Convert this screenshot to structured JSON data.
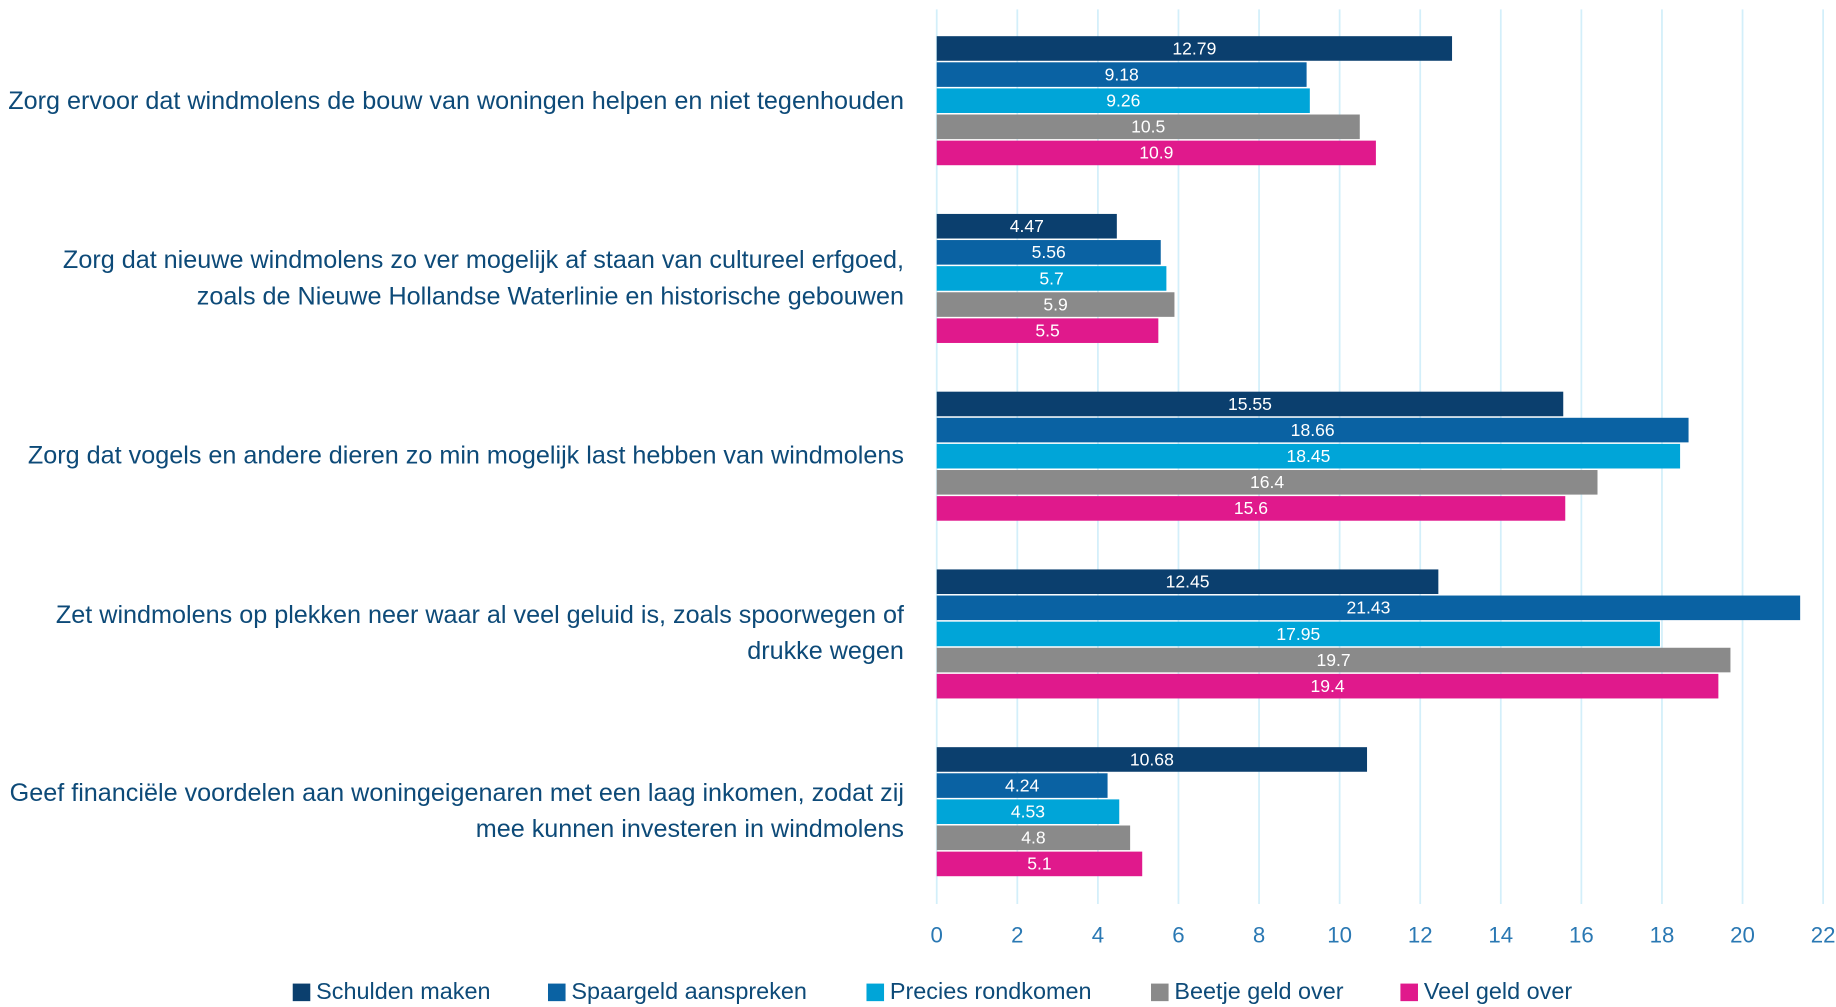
{
  "chart_data": {
    "type": "hbar",
    "categories": [
      "Zorg ervoor dat windmolens de bouw van woningen helpen en niet tegenhouden",
      "Zorg dat nieuwe windmolens zo ver mogelijk af staan van cultureel erfgoed, zoals de Nieuwe Hollandse Waterlinie en historische gebouwen",
      "Zorg dat vogels en andere dieren zo min mogelijk last hebben van windmolens",
      "Zet windmolens op plekken neer waar al veel geluid is, zoals spoorwegen of drukke wegen",
      "Geef financiële voordelen aan woningeigenaren met een laag inkomen, zodat zij mee kunnen investeren in windmolens"
    ],
    "series": [
      {
        "name": "Schulden maken",
        "color": "#0b3f6e",
        "values": [
          12.79,
          4.47,
          15.55,
          12.45,
          10.68
        ]
      },
      {
        "name": "Spaargeld aanspreken",
        "color": "#0a62a3",
        "values": [
          9.18,
          5.56,
          18.66,
          21.43,
          4.24
        ]
      },
      {
        "name": "Precies rondkomen",
        "color": "#00a5d8",
        "values": [
          9.26,
          5.7,
          18.45,
          17.95,
          4.53
        ]
      },
      {
        "name": "Beetje geld over",
        "color": "#8a8a8a",
        "values": [
          10.5,
          5.9,
          16.4,
          19.7,
          4.8
        ]
      },
      {
        "name": "Veel geld over",
        "color": "#e0198c",
        "values": [
          10.9,
          5.5,
          15.6,
          19.4,
          5.1
        ]
      }
    ],
    "xlim": [
      0,
      22
    ],
    "xticks": [
      0,
      2,
      4,
      6,
      8,
      10,
      12,
      14,
      16,
      18,
      20,
      22
    ],
    "grid": true,
    "legend": "bottom"
  }
}
